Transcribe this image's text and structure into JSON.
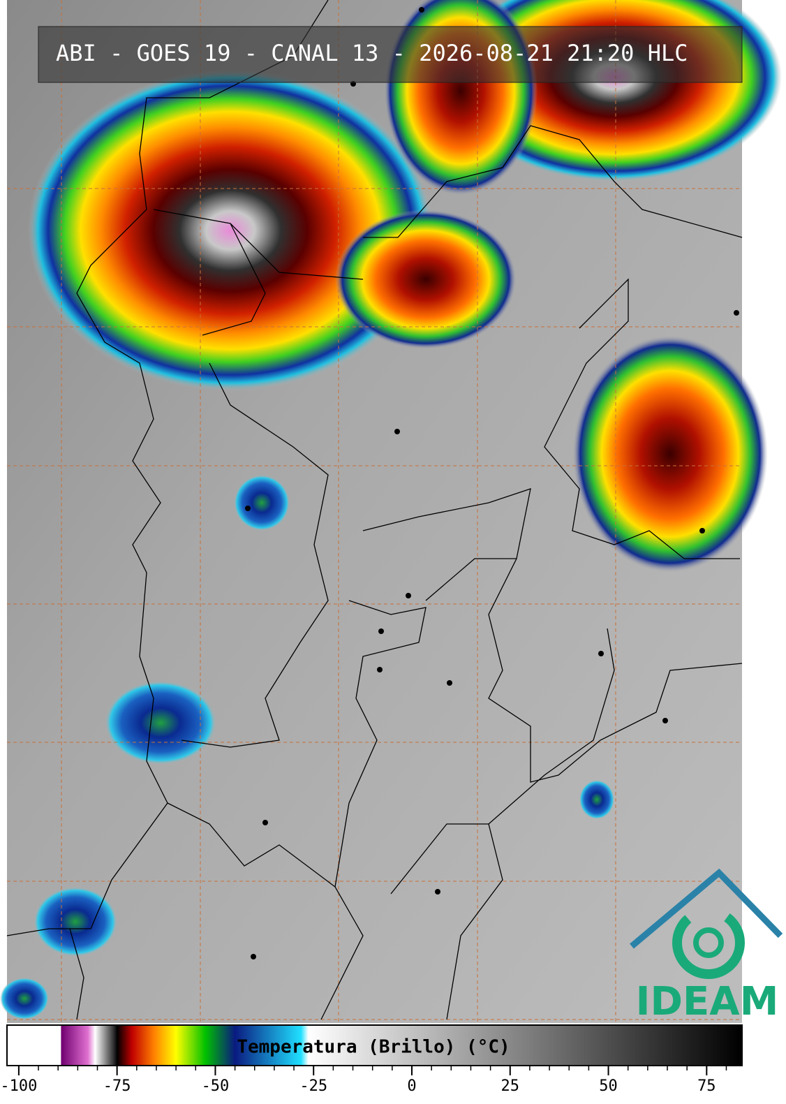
{
  "header": {
    "title": "ABI - GOES 19 - CANAL 13 - 2026-08-21 21:20 HLC"
  },
  "colorbar": {
    "label": "Temperatura (Brillo) (°C)",
    "range": [
      -103,
      84
    ],
    "ticks": [
      -100,
      -75,
      -50,
      -25,
      0,
      25,
      50,
      75
    ],
    "minor_step": 5
  },
  "logo": {
    "text": "IDEAM"
  }
}
